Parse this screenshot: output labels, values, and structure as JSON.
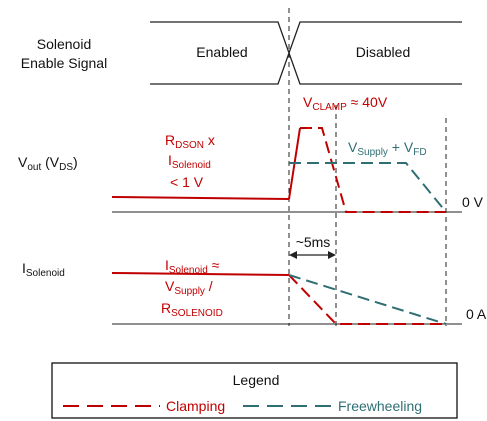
{
  "colors": {
    "axis": "#222222",
    "clamp": "#c00000",
    "freewheel": "#2f6f73",
    "box": "#111111"
  },
  "signal": {
    "label_line1": "Solenoid",
    "label_line2": "Enable Signal",
    "enabled": "Enabled",
    "disabled": "Disabled"
  },
  "vout": {
    "label_main": "V",
    "label_sub1": "out",
    "label_mid": " (V",
    "label_sub2": "DS",
    "label_end": ")",
    "zero": "0 V",
    "rdson_main": "R",
    "rdson_sub": "DSON",
    "rdson_tail": " x",
    "isol_main": "I",
    "isol_sub": "Solenoid",
    "lt1v": "< 1 V",
    "vclamp_main": "V",
    "vclamp_sub": "CLAMP",
    "vclamp_tail": " ≈ 40V",
    "vsup_main": "V",
    "vsup_sub": "Supply",
    "vsup_mid": " + V",
    "vfd_sub": "FD"
  },
  "isol": {
    "label_main": "I",
    "label_sub": "Solenoid",
    "zero": "0 A",
    "t_label": "~5ms",
    "eq_main": "I",
    "eq_sub": "Solenoid",
    "eq_tail": " ≈",
    "vs_main": "V",
    "vs_sub": "Supply",
    "vs_tail": " /",
    "r_main": "R",
    "r_sub": "SOLENOID"
  },
  "legend": {
    "title": "Legend",
    "clamping": "Clamping",
    "freewheeling": "Freewheeling"
  }
}
